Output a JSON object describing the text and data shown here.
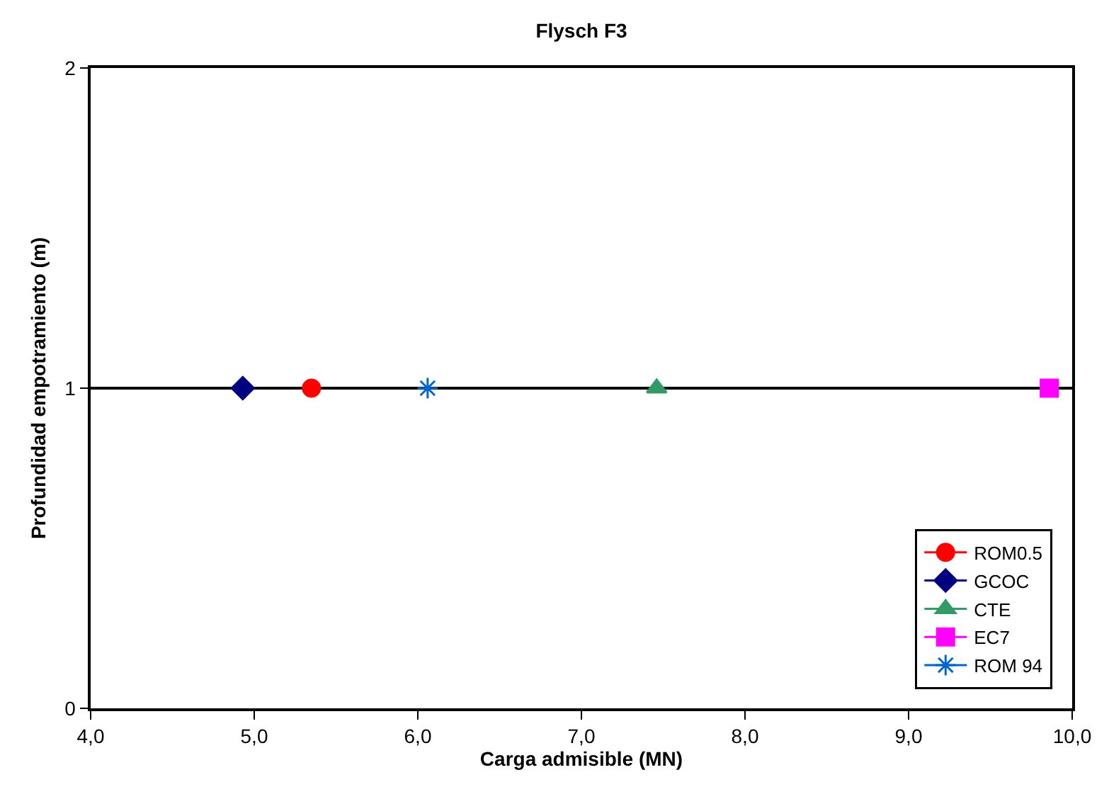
{
  "chart_data": {
    "type": "line",
    "title": "Flysch F3",
    "xlabel": "Carga admisible (MN)",
    "ylabel": "Profundidad empotramiento (m)",
    "xlim": [
      4,
      10
    ],
    "xticks": [
      {
        "value": 4,
        "label": "4,0"
      },
      {
        "value": 5,
        "label": "5,0"
      },
      {
        "value": 6,
        "label": "6,0"
      },
      {
        "value": 7,
        "label": "7,0"
      },
      {
        "value": 8,
        "label": "8,0"
      },
      {
        "value": 9,
        "label": "9,0"
      },
      {
        "value": 10,
        "label": "10,0"
      }
    ],
    "ylim": [
      0,
      2
    ],
    "yticks": [
      0,
      1,
      2
    ],
    "grid": "y",
    "legend": "bottom right",
    "series": [
      {
        "name": "ROM0.5",
        "color": "#ff0000",
        "marker": "circle",
        "x": [
          5.35
        ],
        "values": [
          1
        ]
      },
      {
        "name": "GCOC",
        "color": "#000080",
        "marker": "diamond",
        "x": [
          4.93
        ],
        "values": [
          1
        ]
      },
      {
        "name": "CTE",
        "color": "#339966",
        "marker": "triangle",
        "x": [
          7.46
        ],
        "values": [
          1
        ]
      },
      {
        "name": "EC7",
        "color": "#ff00ff",
        "marker": "square",
        "x": [
          9.86
        ],
        "values": [
          1
        ]
      },
      {
        "name": "ROM 94",
        "color": "#0066cc",
        "marker": "cross",
        "x": [
          6.06
        ],
        "values": [
          1
        ]
      }
    ]
  }
}
